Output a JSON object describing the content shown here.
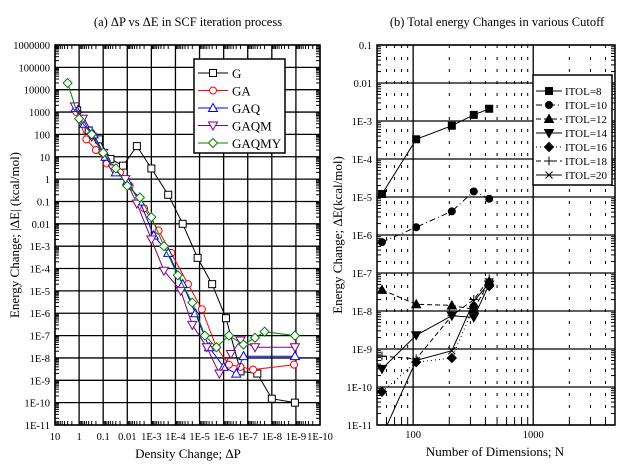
{
  "chart_data": [
    {
      "type": "line",
      "title": "(a) ΔP vs ΔE in SCF iteration process",
      "xlabel": "Density Change; ΔP",
      "ylabel": "Energy Change; |ΔE| (kcal/mol)",
      "xscale": "log-reversed",
      "yscale": "log",
      "xlim": [
        10,
        1e-10
      ],
      "ylim": [
        1e-11,
        1000000
      ],
      "grid": true,
      "legend_position": "top-right",
      "xticks": [
        "10",
        "1",
        "0.1",
        "0.01",
        "1E-3",
        "1E-4",
        "1E-5",
        "1E-6",
        "1E-7",
        "1E-8",
        "1E-9",
        "1E-10"
      ],
      "yticks": [
        "1E-11",
        "1E-10",
        "1E-9",
        "1E-8",
        "1E-7",
        "1E-6",
        "1E-5",
        "1E-4",
        "1E-3",
        "0.01",
        "0.1",
        "1",
        "10",
        "100",
        "1000",
        "10000",
        "100000",
        "1000000"
      ],
      "series": [
        {
          "name": "G",
          "color": "#000000",
          "marker": "square-open",
          "x": [
            1.2,
            0.4,
            0.15,
            0.05,
            0.015,
            0.004,
            0.001,
            0.0002,
            5e-05,
            1.2e-05,
            3e-06,
            8e-07,
            2e-07,
            4e-08,
            1e-08,
            1.1e-09
          ],
          "y": [
            1200,
            150,
            60,
            8,
            4,
            30,
            3,
            0.2,
            0.01,
            0.0003,
            2e-05,
            6e-07,
            2.5e-09,
            2e-09,
            1.5e-10,
            1e-10
          ]
        },
        {
          "name": "GA",
          "color": "#ff0000",
          "marker": "circle-open",
          "x": [
            1.3,
            0.5,
            0.2,
            0.07,
            0.02,
            0.008,
            0.002,
            0.0005,
            0.00015,
            3e-05,
            8e-06,
            2e-06,
            6e-07,
            2e-07,
            6e-08,
            1.2e-09
          ],
          "y": [
            1000,
            60,
            20,
            5,
            2,
            0.5,
            0.05,
            0.005,
            0.0005,
            2e-05,
            1.5e-06,
            3e-08,
            5e-09,
            4e-09,
            3e-09,
            5e-09
          ]
        },
        {
          "name": "GAQ",
          "color": "#0000ff",
          "marker": "triangle-open",
          "x": [
            1.4,
            0.6,
            0.25,
            0.08,
            0.03,
            0.01,
            0.003,
            0.0008,
            0.0002,
            5e-05,
            1.5e-05,
            4e-06,
            1e-06,
            3e-07,
            1.5e-07,
            1.1e-09
          ],
          "y": [
            1500,
            300,
            100,
            10,
            2,
            0.8,
            0.1,
            0.003,
            0.0005,
            2e-05,
            1e-06,
            3e-08,
            4e-09,
            2e-09,
            1.2e-08,
            1.2e-08
          ]
        },
        {
          "name": "GAQM",
          "color": "#800080",
          "marker": "triangle-down-open",
          "x": [
            1.5,
            0.7,
            0.3,
            0.1,
            0.04,
            0.012,
            0.004,
            0.001,
            0.0003,
            6e-05,
            2e-05,
            5e-06,
            1.5e-06,
            5e-07,
            2e-07,
            5e-08,
            1.1e-09
          ],
          "y": [
            1800,
            500,
            80,
            15,
            3,
            1,
            0.08,
            0.002,
            8e-05,
            1e-05,
            3e-07,
            3e-08,
            2e-09,
            1.5e-08,
            6e-08,
            3e-08,
            3e-08
          ]
        },
        {
          "name": "GAQMY",
          "color": "#008000",
          "marker": "diamond-open",
          "x": [
            3,
            1,
            0.3,
            0.1,
            0.03,
            0.01,
            0.003,
            0.001,
            0.0003,
            8e-05,
            2e-05,
            6e-06,
            2e-06,
            6e-07,
            1.5e-07,
            5e-08,
            2e-08,
            1.1e-09
          ],
          "y": [
            20000,
            500,
            100,
            15,
            3,
            0.5,
            0.15,
            0.02,
            0.001,
            5e-05,
            3e-06,
            1e-07,
            3e-08,
            1e-07,
            4e-08,
            8e-08,
            1.5e-07,
            1e-07
          ]
        }
      ]
    },
    {
      "type": "line",
      "title": "(b) Total energy Changes in various Cutoff",
      "xlabel": "Number of Dimensions; N",
      "ylabel": "Energy Change; ΔE(kcal/mol)",
      "xscale": "log",
      "yscale": "log",
      "xlim": [
        50,
        4800
      ],
      "ylim": [
        1e-11,
        0.1
      ],
      "grid": true,
      "legend_position": "top-right",
      "xticks": [
        "100",
        "1000"
      ],
      "yticks": [
        "1E-11",
        "1E-10",
        "1E-9",
        "1E-8",
        "1E-7",
        "1E-6",
        "1E-5",
        "1E-4",
        "1E-3",
        "0.01",
        "0.1"
      ],
      "x": [
        55,
        106,
        210,
        320,
        430
      ],
      "series": [
        {
          "name": "ITOL=8",
          "marker": "square-filled",
          "line": "solid",
          "values": [
            1.2e-05,
            0.00033,
            0.00075,
            0.00145,
            0.0021
          ]
        },
        {
          "name": "ITOL=10",
          "marker": "circle-filled",
          "line": "dashdot",
          "values": [
            6.5e-07,
            1.6e-06,
            4.2e-06,
            1.4e-05,
            9e-06
          ]
        },
        {
          "name": "ITOL=12",
          "marker": "triangle-filled",
          "line": "dashed",
          "values": [
            3.6e-08,
            1.5e-08,
            1.4e-08,
            1.1e-08,
            6e-08
          ]
        },
        {
          "name": "ITOL=14",
          "marker": "triangle-down-filled",
          "line": "solid",
          "values": [
            3e-10,
            2.3e-09,
            7.5e-09,
            6.8e-09,
            5e-08
          ]
        },
        {
          "name": "ITOL=16",
          "marker": "diamond-filled",
          "line": "dotted",
          "values": [
            7.5e-11,
            4.5e-10,
            5.8e-10,
            1.3e-08,
            4.5e-08
          ]
        },
        {
          "name": "ITOL=18",
          "marker": "plus",
          "line": "dashed",
          "values": [
            6.5e-10,
            5.5e-10,
            7.5e-09,
            2e-08,
            7e-08
          ]
        },
        {
          "name": "ITOL=20",
          "marker": "cross",
          "line": "solid",
          "values": [
            5e-12,
            5e-10,
            9e-10,
            1.8e-08,
            5.5e-08
          ]
        }
      ]
    }
  ]
}
